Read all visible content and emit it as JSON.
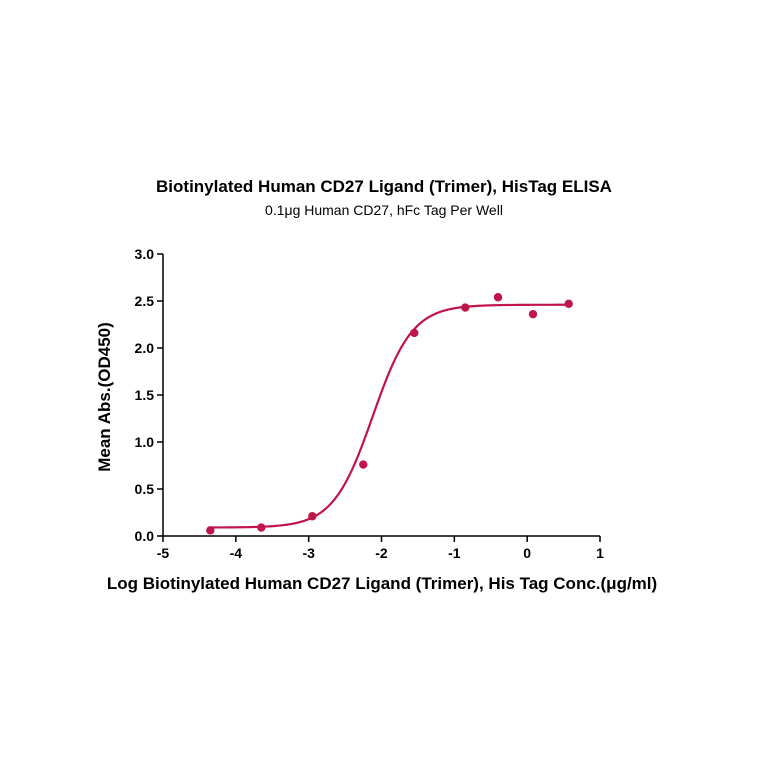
{
  "chart_data": {
    "type": "scatter",
    "title": "Biotinylated Human CD27 Ligand (Trimer), HisTag ELISA",
    "subtitle": "0.1μg Human CD27, hFc Tag Per Well",
    "xlabel": "Log Biotinylated Human CD27 Ligand (Trimer), His Tag Conc.(μg/ml)",
    "ylabel": "Mean Abs.(OD450)",
    "xlim": [
      -5,
      1
    ],
    "ylim": [
      0,
      3
    ],
    "x_ticks": [
      "-5",
      "-4",
      "-3",
      "-2",
      "-1",
      "0",
      "1"
    ],
    "y_ticks": [
      "0.0",
      "0.5",
      "1.0",
      "1.5",
      "2.0",
      "2.5",
      "3.0"
    ],
    "grid": false,
    "color": "#c0144a",
    "series": [
      {
        "points": [
          {
            "x": -4.35,
            "y": 0.06
          },
          {
            "x": -3.65,
            "y": 0.09
          },
          {
            "x": -2.95,
            "y": 0.21
          },
          {
            "x": -2.25,
            "y": 0.76
          },
          {
            "x": -1.55,
            "y": 2.16
          },
          {
            "x": -0.85,
            "y": 2.43
          },
          {
            "x": -0.4,
            "y": 2.54
          },
          {
            "x": 0.08,
            "y": 2.36
          },
          {
            "x": 0.57,
            "y": 2.47
          }
        ],
        "fit": {
          "bottom": 0.09,
          "top": 2.46,
          "logEC50": -2.12,
          "hill": 1.6,
          "x_start": -4.35,
          "x_end": 0.57
        }
      }
    ]
  }
}
